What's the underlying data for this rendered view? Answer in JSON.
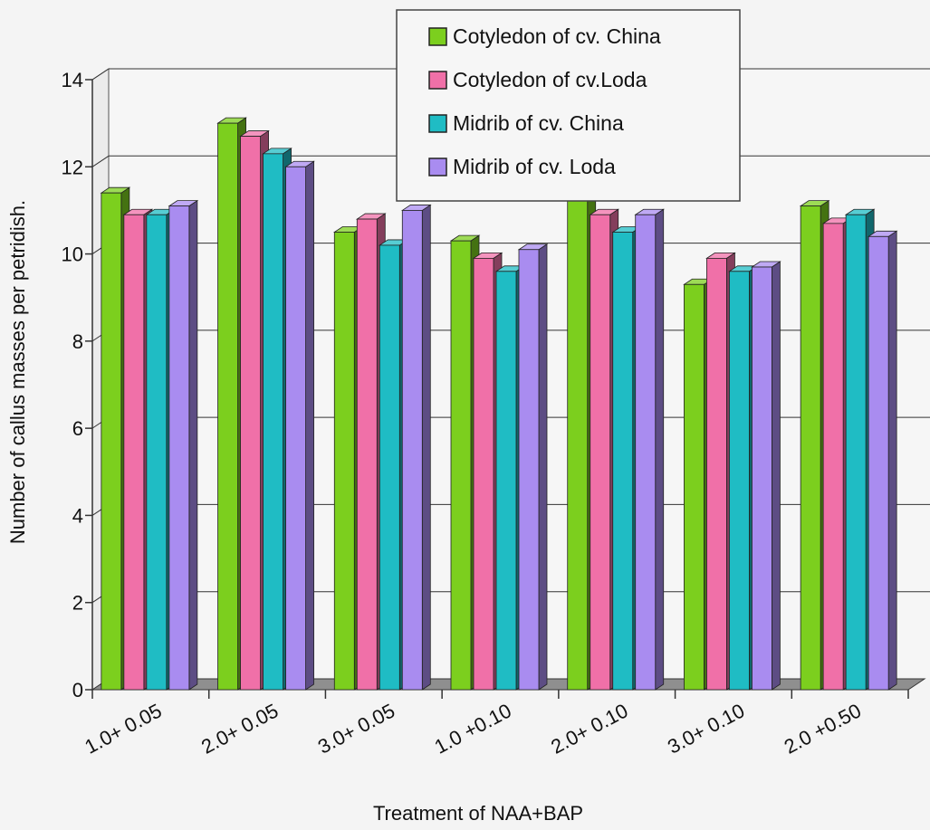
{
  "chart_data": {
    "type": "bar",
    "title": "",
    "xlabel": "Treatment of NAA+BAP",
    "ylabel": "Number of callus masses per petridish.",
    "ylim": [
      0,
      14
    ],
    "yticks": [
      "0",
      "2",
      "4",
      "6",
      "8",
      "10",
      "12",
      "14"
    ],
    "categories": [
      "1.0+ 0.05",
      "2.0+ 0.05",
      "3.0+ 0.05",
      "1.0 +0.10",
      "2.0+ 0.10",
      "3.0+ 0.10",
      "2.0 +0.50"
    ],
    "series": [
      {
        "name": "Cotyledon of cv. China",
        "color": "#7ccf1e",
        "values": [
          11.4,
          13.0,
          10.5,
          10.3,
          11.5,
          9.3,
          11.1
        ]
      },
      {
        "name": "Cotyledon of cv.Loda",
        "color": "#f070a8",
        "values": [
          10.9,
          12.7,
          10.8,
          9.9,
          10.9,
          9.9,
          10.7
        ]
      },
      {
        "name": "Midrib of cv. China",
        "color": "#1fbcc4",
        "values": [
          10.9,
          12.3,
          10.2,
          9.6,
          10.5,
          9.6,
          10.9
        ]
      },
      {
        "name": "Midrib of cv. Loda",
        "color": "#a98cf0",
        "values": [
          11.1,
          12.0,
          11.0,
          10.1,
          10.9,
          9.7,
          10.4
        ]
      }
    ],
    "grid": true,
    "legend_position": "top-center",
    "style": "3d-bar"
  }
}
